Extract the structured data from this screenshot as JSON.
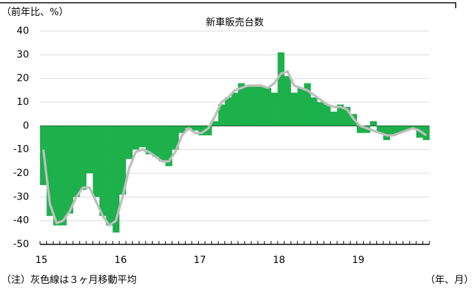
{
  "chart_data": {
    "type": "bar",
    "title": "新車販売台数",
    "y_label": "（前年比、%）",
    "x_label": "（年、月）",
    "note": "（注）灰色線は３ヶ月移動平均",
    "categories": [
      "15",
      null,
      null,
      null,
      null,
      null,
      null,
      null,
      null,
      null,
      null,
      null,
      "16",
      null,
      null,
      null,
      null,
      null,
      null,
      null,
      null,
      null,
      null,
      null,
      "17",
      null,
      null,
      null,
      null,
      null,
      null,
      null,
      null,
      null,
      null,
      null,
      "18",
      null,
      null,
      null,
      null,
      null,
      null,
      null,
      null,
      null,
      null,
      null,
      "19",
      null,
      null,
      null,
      null,
      null,
      null,
      null,
      null,
      null,
      null
    ],
    "series": [
      {
        "type": "bar",
        "color": "#1db04b",
        "values": [
          -25,
          -38,
          -42,
          -42,
          -37,
          -30,
          -27,
          -20,
          -30,
          -38,
          -42,
          -45,
          -29,
          -14,
          -10,
          -9,
          -12,
          -13,
          -15,
          -17,
          -10,
          -3,
          -1,
          -2,
          -4,
          -4,
          2,
          9,
          12,
          14,
          18,
          17,
          17,
          17,
          16,
          14,
          31,
          21,
          14,
          16,
          18,
          12,
          10,
          9,
          6,
          9,
          8,
          5,
          -3,
          -3,
          2,
          -3,
          -6,
          -4,
          -3,
          -2,
          -1,
          -5,
          -6
        ]
      },
      {
        "type": "line",
        "color": "#bfbfbf",
        "values": [
          -10,
          -33,
          -41,
          -40,
          -36,
          -30,
          -26,
          -26,
          -32,
          -38,
          -42,
          -40,
          -30,
          -18,
          -11,
          -10,
          -11,
          -13,
          -15,
          -15,
          -11,
          -4,
          -1,
          -3,
          -3,
          -1,
          4,
          10,
          12,
          15,
          16,
          17,
          17,
          17,
          16,
          18,
          22,
          23,
          17,
          16,
          15,
          13,
          11,
          9,
          8,
          8,
          7,
          3,
          0,
          -1,
          -2,
          -3,
          -4,
          -4,
          -3,
          -2,
          -1,
          -2,
          -4
        ]
      }
    ],
    "ylim": [
      -50,
      40
    ],
    "yticks": [
      -50,
      -40,
      -30,
      -20,
      -10,
      0,
      10,
      20,
      30,
      40
    ],
    "grid": true
  }
}
